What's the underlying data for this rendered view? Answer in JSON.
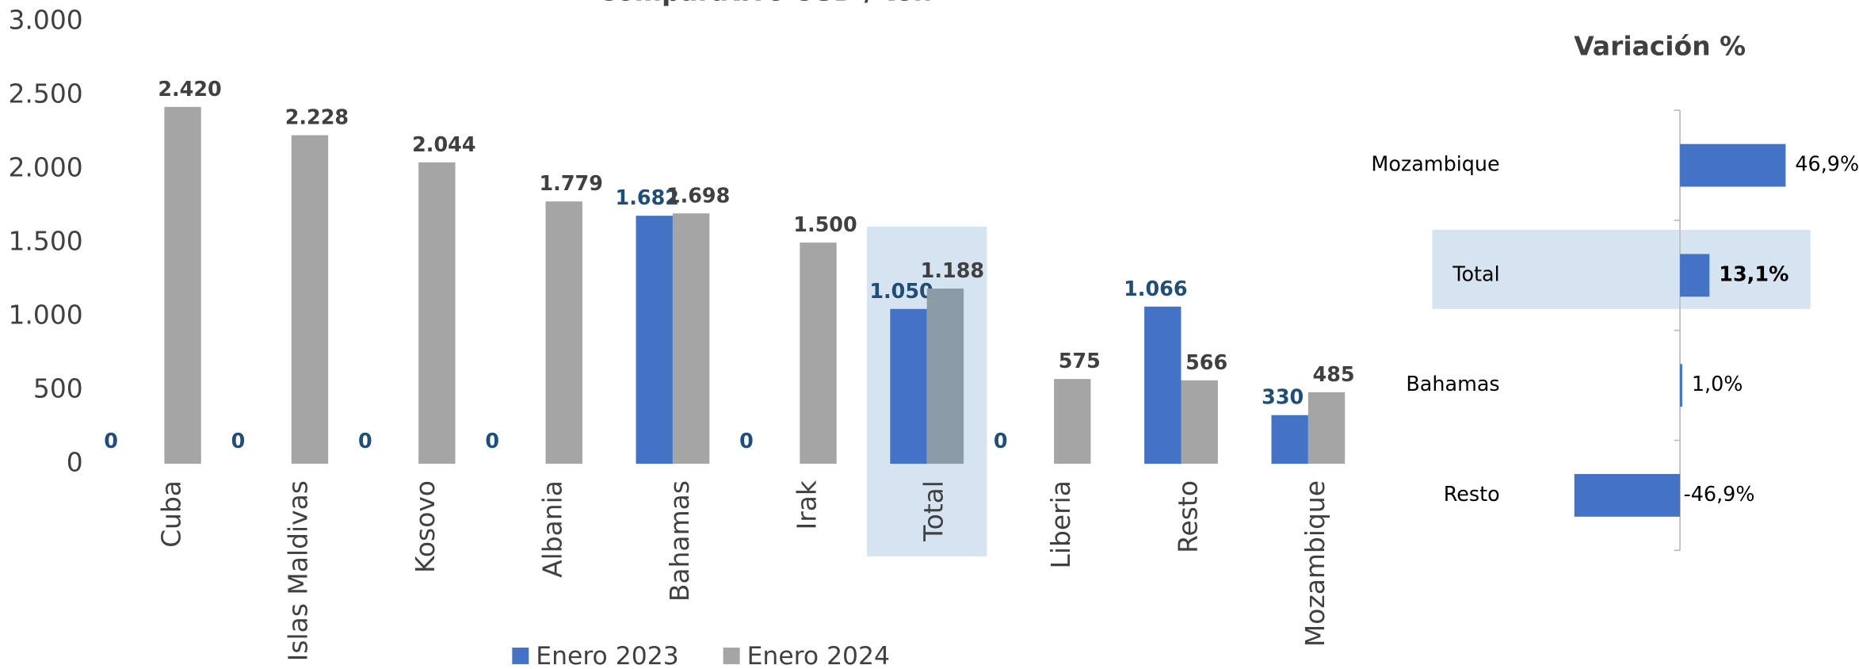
{
  "chart_data": [
    {
      "type": "bar",
      "title": "Comparativo USD / ton",
      "categories": [
        "Cuba",
        "Islas Maldivas",
        "Kosovo",
        "Albania",
        "Bahamas",
        "Irak",
        "Total",
        "Liberia",
        "Resto",
        "Mozambique"
      ],
      "series": [
        {
          "name": "Enero 2023",
          "color": "#4472c4",
          "label_color": "#1f4e79",
          "values": [
            0,
            0,
            0,
            0,
            1682,
            0,
            1050,
            0,
            1066,
            330
          ],
          "value_labels": [
            "0",
            "0",
            "0",
            "0",
            "1.682",
            "0",
            "1.050",
            "0",
            "1.066",
            "330"
          ]
        },
        {
          "name": "Enero 2024",
          "color": "#a5a5a5",
          "label_color": "#404040",
          "values": [
            2420,
            2228,
            2044,
            1779,
            1698,
            1500,
            1188,
            575,
            566,
            485
          ],
          "value_labels": [
            "2.420",
            "2.228",
            "2.044",
            "1.779",
            "1.698",
            "1.500",
            "1.188",
            "575",
            "566",
            "485"
          ]
        }
      ],
      "ylim": [
        0,
        3000
      ],
      "yticks": [
        0,
        500,
        {
          "value": 1000,
          "label": "1.000"
        },
        {
          "value": 1500,
          "label": "1.500"
        },
        {
          "value": 2000,
          "label": "2.000"
        },
        {
          "value": 2500,
          "label": "2.500"
        },
        {
          "value": 3000,
          "label": "3.000"
        }
      ],
      "legend": "bottom"
    },
    {
      "type": "hbar",
      "title": "Variación %",
      "categories": [
        "Mozambique",
        "Total",
        "Bahamas",
        "Resto"
      ],
      "values": [
        46.9,
        13.1,
        1.0,
        -46.9
      ],
      "value_labels": [
        "46,9%",
        "13,1%",
        "1,0%",
        "-46,9%"
      ],
      "color": "#4472c4",
      "xlim": [
        -50,
        50
      ]
    }
  ]
}
